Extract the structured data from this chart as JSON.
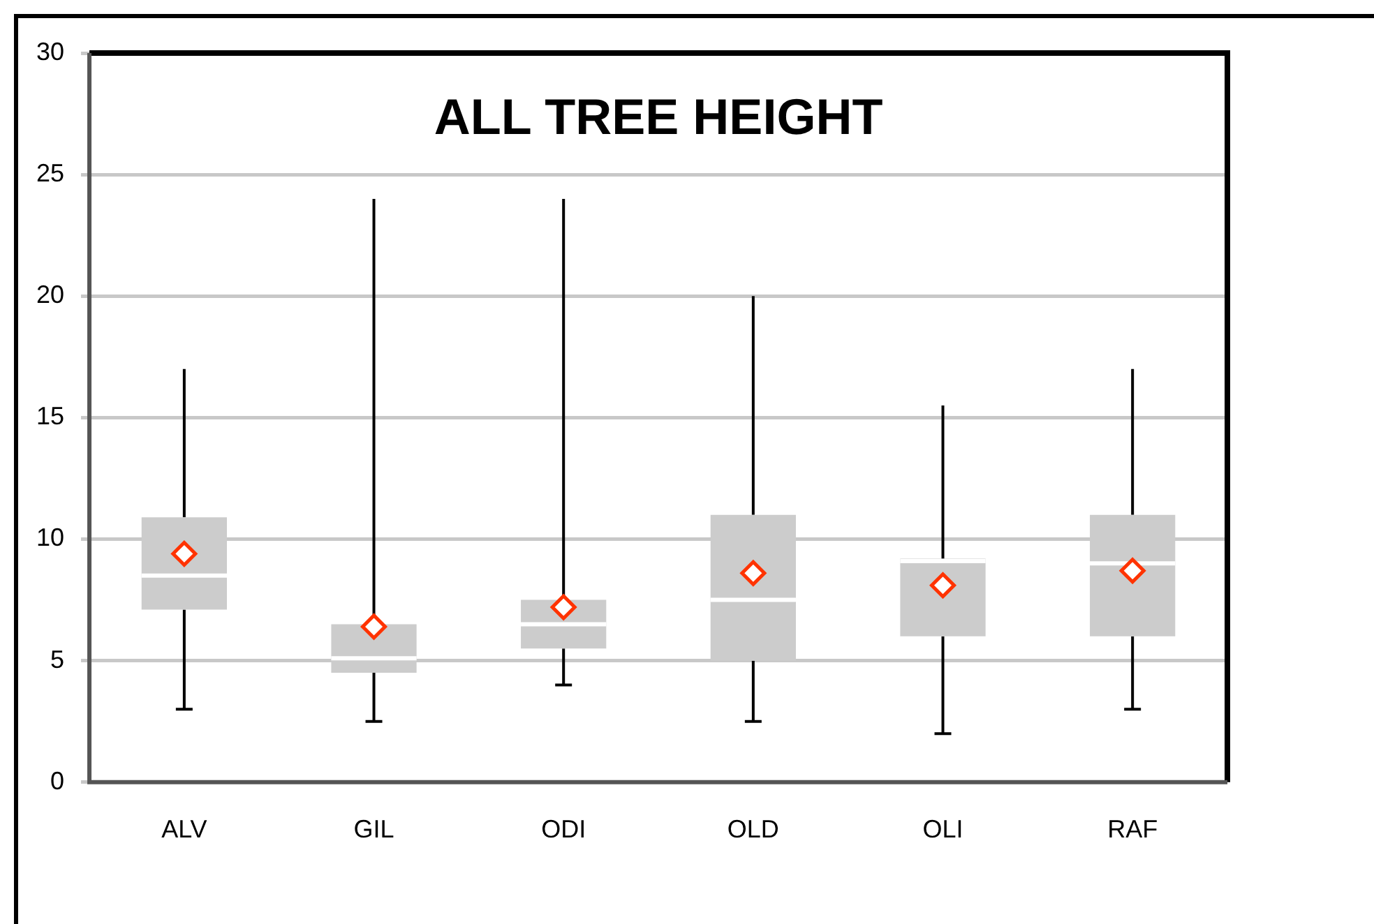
{
  "chart_data": {
    "type": "box",
    "title": "ALL TREE HEIGHT",
    "categories": [
      "ALV",
      "GIL",
      "ODI",
      "OLD",
      "OLI",
      "RAF"
    ],
    "series": [
      {
        "color": "#cccccc",
        "boxes": [
          {
            "low": 3,
            "q1": 7.1,
            "median": 8.5,
            "q3": 10.9,
            "high": 17,
            "mean": 9.4
          },
          {
            "low": 2.5,
            "q1": 4.5,
            "median": 5.1,
            "q3": 6.5,
            "high": 24,
            "mean": 6.4
          },
          {
            "low": 4,
            "q1": 5.5,
            "median": 6.5,
            "q3": 7.5,
            "high": 24,
            "mean": 7.2
          },
          {
            "low": 2.5,
            "q1": 5,
            "median": 7.5,
            "q3": 11,
            "high": 20,
            "mean": 8.6
          },
          {
            "low": 2,
            "q1": 6,
            "median": 9.1,
            "q3": 9.2,
            "high": 15.5,
            "mean": 8.1
          },
          {
            "low": 3,
            "q1": 6,
            "median": 9,
            "q3": 11,
            "high": 17,
            "mean": 8.7
          }
        ]
      }
    ],
    "ylim": [
      0,
      30
    ],
    "yticks": [
      0,
      5,
      10,
      15,
      20,
      25,
      30
    ],
    "grid": "y",
    "marker": "diamond",
    "legend": false
  }
}
